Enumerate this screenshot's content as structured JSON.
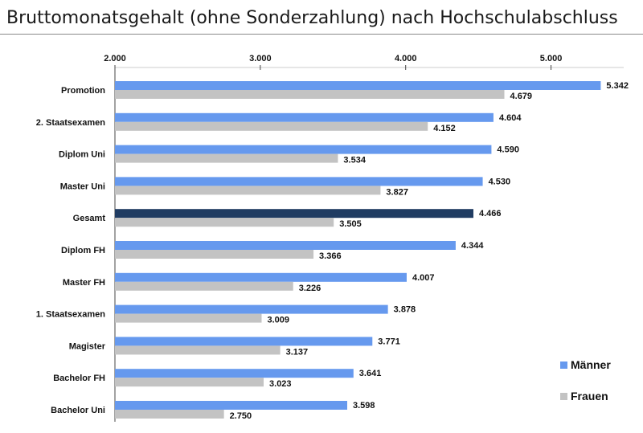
{
  "chart_data": {
    "type": "bar",
    "orientation": "horizontal",
    "title": "Bruttomonatsgehalt (ohne Sonderzahlung) nach Hochschulabschluss",
    "categories": [
      "Promotion",
      "2. Staatsexamen",
      "Diplom Uni",
      "Master Uni",
      "Gesamt",
      "Diplom FH",
      "Master FH",
      "1. Staatsexamen",
      "Magister",
      "Bachelor FH",
      "Bachelor Uni"
    ],
    "series": [
      {
        "name": "Männer",
        "color": "#6699ee",
        "highlight_color": "#203c62",
        "values": [
          5342,
          4604,
          4590,
          4530,
          4466,
          4344,
          4007,
          3878,
          3771,
          3641,
          3598
        ],
        "labels": [
          "5.342",
          "4.604",
          "4.590",
          "4.530",
          "4.466",
          "4.344",
          "4.007",
          "3.878",
          "3.771",
          "3.641",
          "3.598"
        ]
      },
      {
        "name": "Frauen",
        "color": "#c3c3c3",
        "values": [
          4679,
          4152,
          3534,
          3827,
          3505,
          3366,
          3226,
          3009,
          3137,
          3023,
          2750
        ],
        "labels": [
          "4.679",
          "4.152",
          "3.534",
          "3.827",
          "3.505",
          "3.366",
          "3.226",
          "3.009",
          "3.137",
          "3.023",
          "2.750"
        ]
      }
    ],
    "highlight_category": "Gesamt",
    "xlim": [
      2000,
      5500
    ],
    "xticks": [
      2000,
      3000,
      4000,
      5000
    ],
    "xtick_labels": [
      "2.000",
      "3.000",
      "4.000",
      "5.000"
    ],
    "axis_position": "top",
    "grid": false,
    "legend": "bottom-right"
  }
}
